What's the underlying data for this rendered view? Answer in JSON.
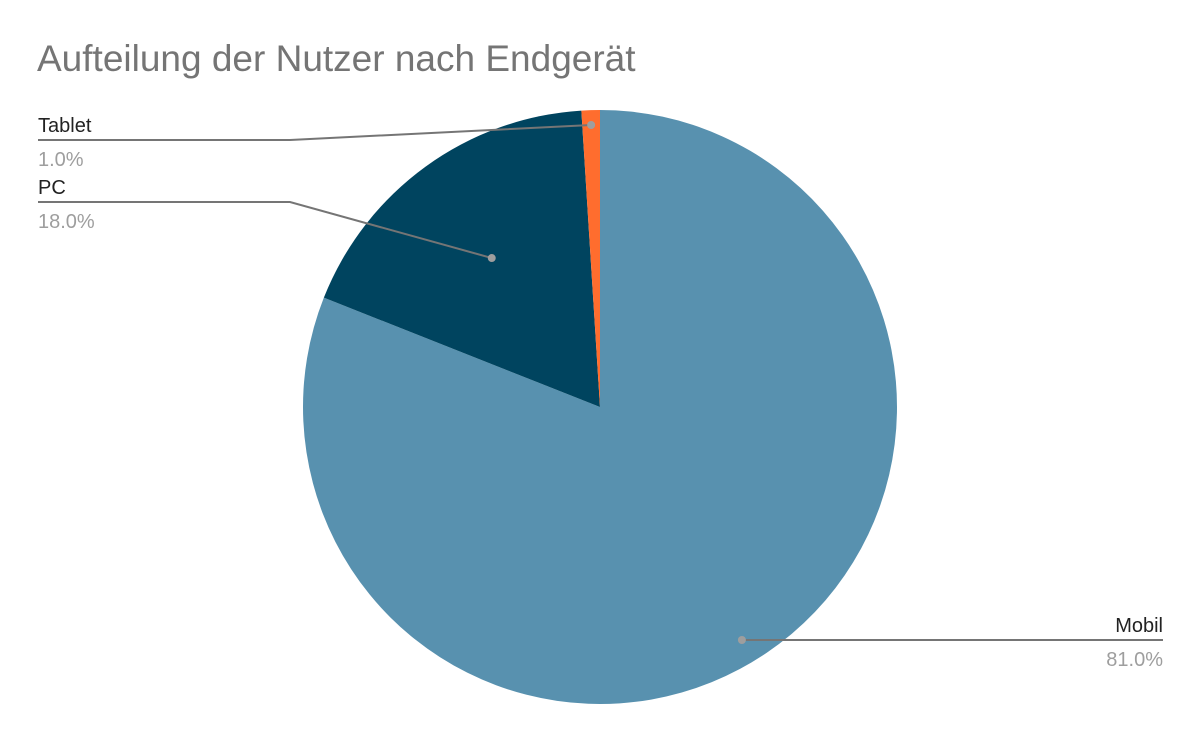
{
  "chart_data": {
    "type": "pie",
    "title": "Aufteilung der Nutzer nach Endgerät",
    "start_angle": "top, clockwise",
    "slices": [
      {
        "label": "Mobil",
        "value": 81.0,
        "pct_label": "81.0%",
        "color": "#5891AF"
      },
      {
        "label": "PC",
        "value": 18.0,
        "pct_label": "18.0%",
        "color": "#00445F"
      },
      {
        "label": "Tablet",
        "value": 1.0,
        "pct_label": "1.0%",
        "color": "#FF6D2E"
      }
    ],
    "legend": "none (leader-line labels)",
    "label_color": "#222222",
    "pct_color": "#9E9E9E",
    "line_color": "#757575"
  }
}
